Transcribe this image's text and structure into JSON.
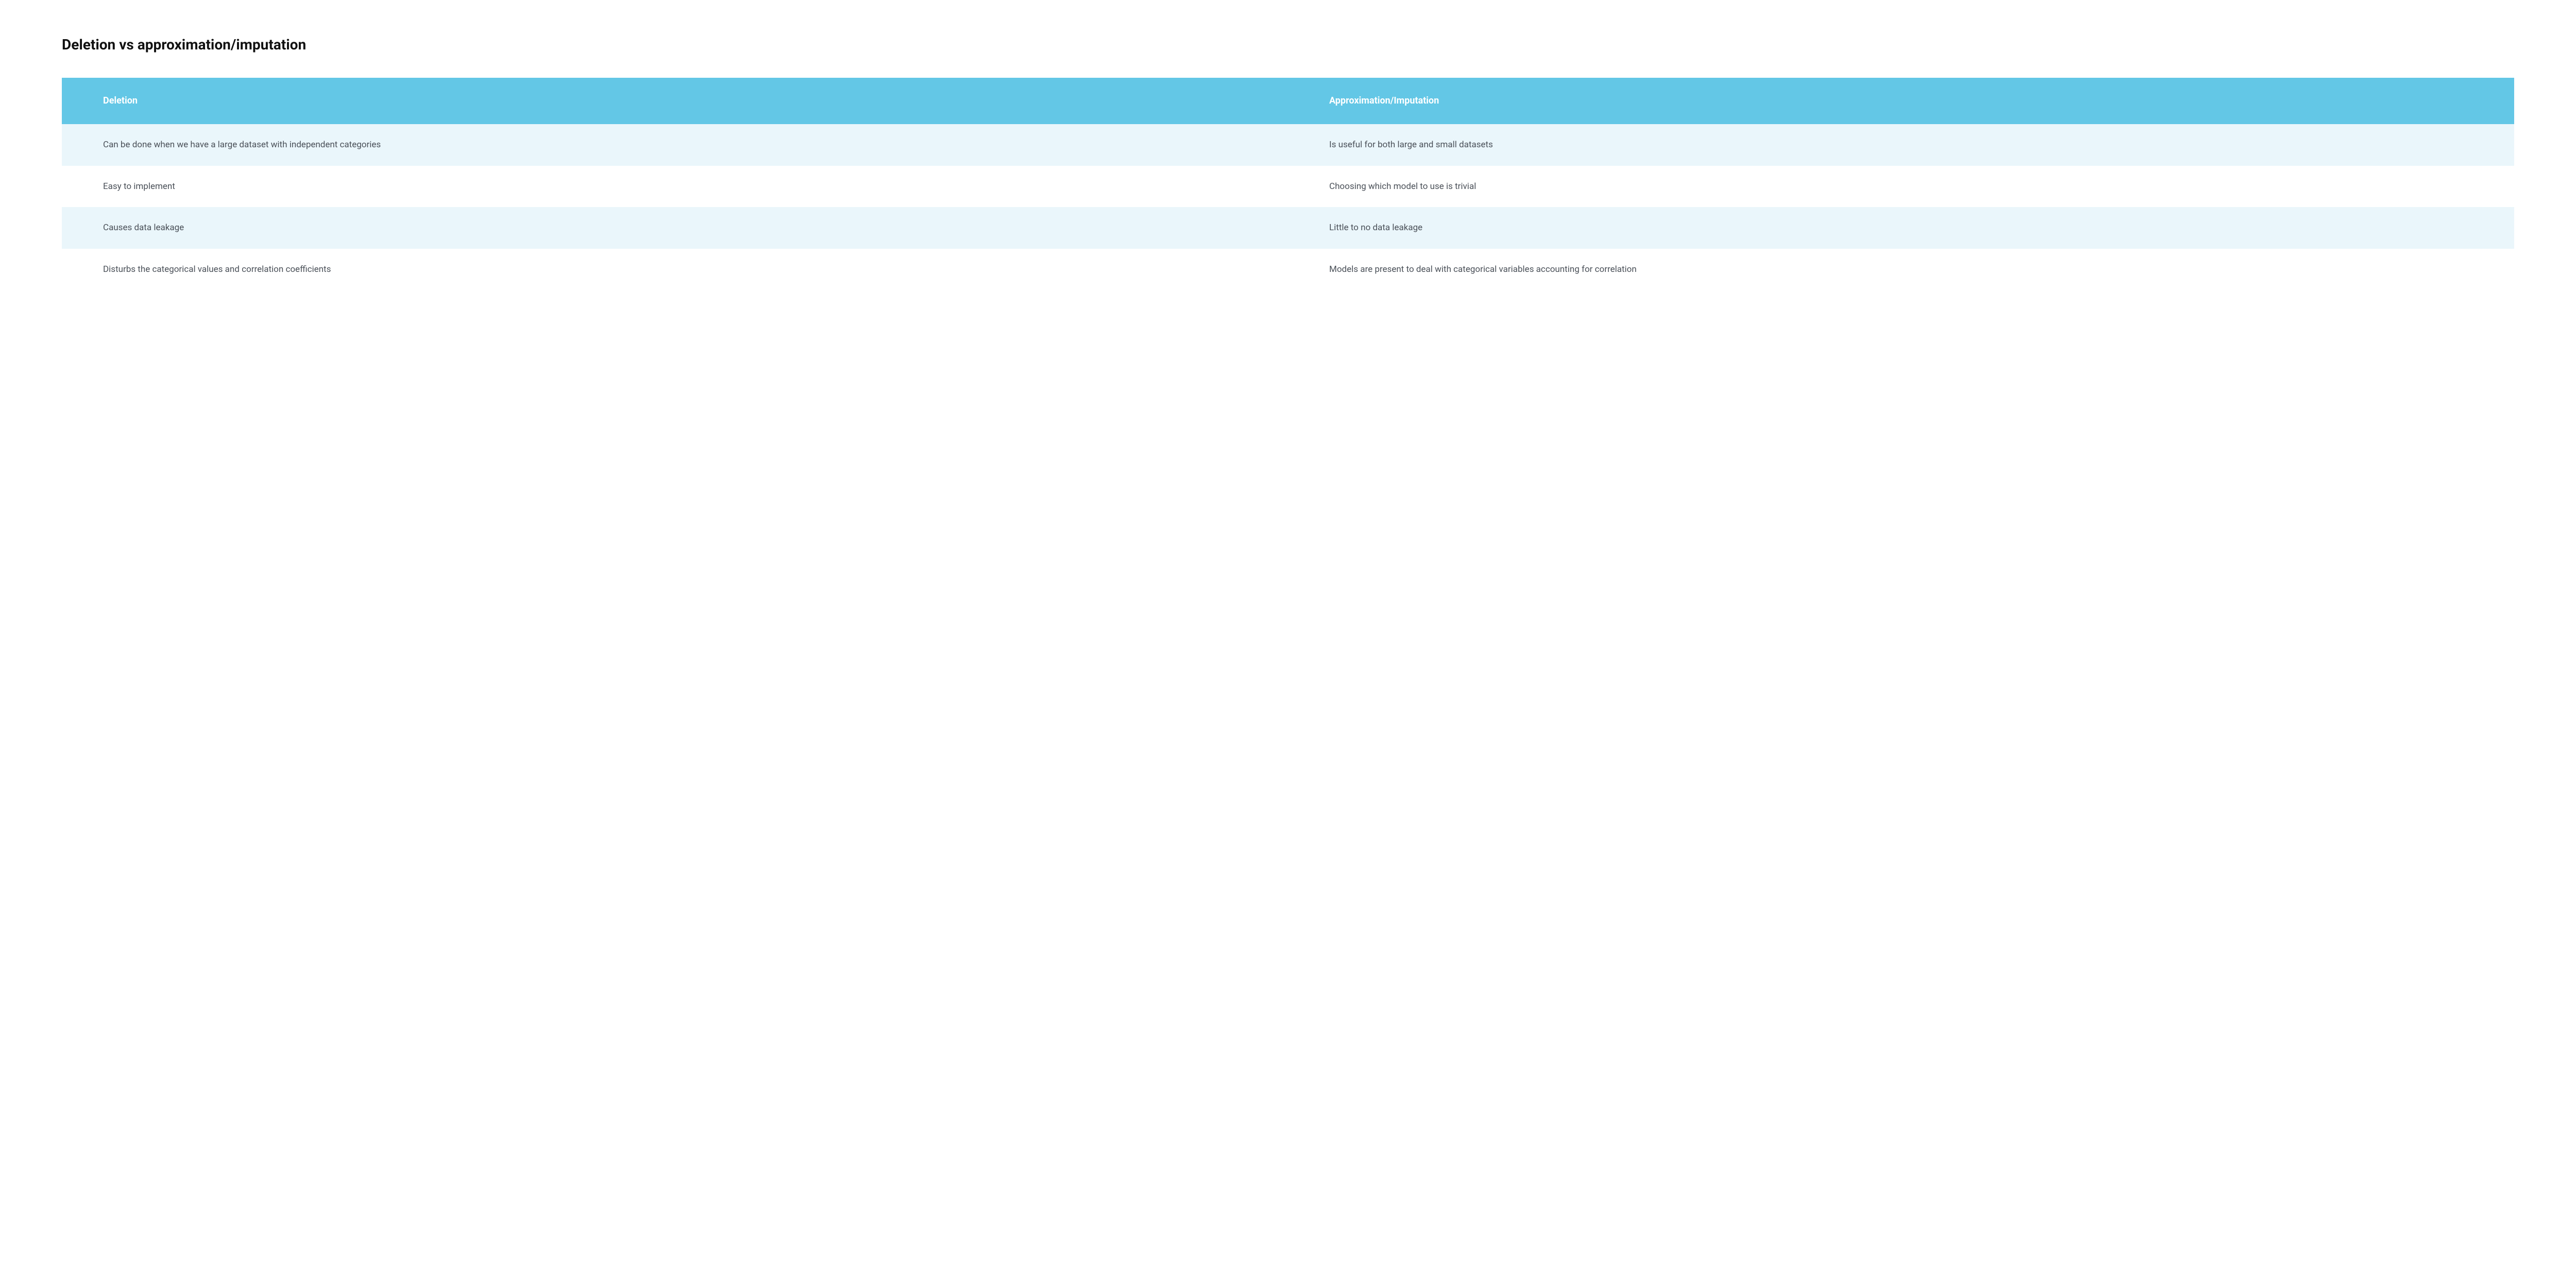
{
  "title": "Deletion vs approximation/imputation",
  "table": {
    "colors": {
      "header_bg": "#63c7e6",
      "header_text": "#ffffff",
      "alt_row_bg": "#eaf6fb",
      "plain_row_bg": "#ffffff",
      "body_text": "#4a5058",
      "title_text": "#111111"
    },
    "font": {
      "title_size_pt": 21,
      "header_size_pt": 14,
      "body_size_pt": 13,
      "title_weight": 700,
      "header_weight": 700,
      "body_weight": 400
    },
    "columns": [
      {
        "label": "Deletion"
      },
      {
        "label": "Approximation/Imputation"
      }
    ],
    "rows": [
      {
        "style": "alt",
        "cells": [
          "Can be done when we have a large dataset with independent categories",
          "Is useful for both large and small datasets"
        ]
      },
      {
        "style": "plain",
        "cells": [
          "Easy to implement",
          "Choosing which model to use is trivial"
        ]
      },
      {
        "style": "alt",
        "cells": [
          "Causes data leakage",
          "Little to no data leakage"
        ]
      },
      {
        "style": "plain",
        "cells": [
          "Disturbs the categorical values and correlation coefficients",
          "Models are present to deal with categorical variables accounting for correlation"
        ]
      }
    ]
  }
}
